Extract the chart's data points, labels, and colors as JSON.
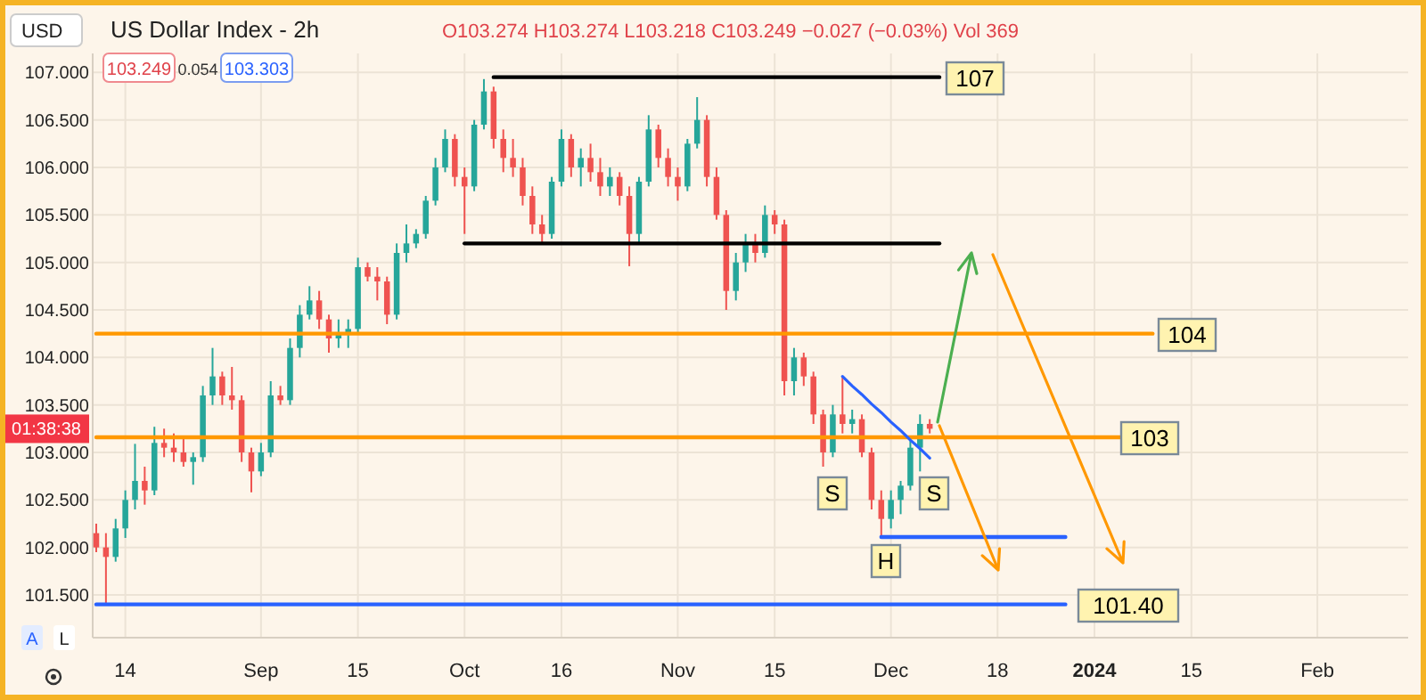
{
  "chart_data": {
    "type": "candlestick",
    "title": "US Dollar Index - 2h",
    "annotations": [
      "USD",
      "O103.274 H103.274 L103.218 C103.249 −0.027 (−0.03%) Vol 369",
      "103.249",
      "0.054",
      "103.303",
      "01:38:38",
      "A",
      "L",
      "107",
      "104",
      "103",
      "101.40",
      "S",
      "H",
      "S"
    ],
    "categories": [
      null,
      null,
      null,
      "14",
      null,
      null,
      null,
      null,
      null,
      null,
      null,
      null,
      null,
      null,
      null,
      null,
      null,
      "Sep",
      null,
      null,
      null,
      null,
      null,
      null,
      null,
      null,
      null,
      "15",
      null,
      null,
      null,
      null,
      null,
      null,
      null,
      null,
      null,
      null,
      "Oct",
      null,
      null,
      null,
      null,
      null,
      null,
      null,
      null,
      null,
      "16",
      null,
      null,
      null,
      null,
      null,
      null,
      null,
      null,
      null,
      null,
      null,
      "Nov",
      null,
      null,
      null,
      null,
      null,
      null,
      null,
      null,
      null,
      "15",
      null,
      null,
      null,
      null,
      null,
      null,
      null,
      null,
      null,
      null,
      null,
      "Dec",
      null,
      null,
      null,
      null,
      null,
      null,
      null,
      null,
      null,
      null,
      "18",
      null,
      null,
      null,
      null,
      null,
      null,
      null,
      null,
      null,
      "2024",
      null,
      null,
      null,
      null,
      null,
      null,
      null,
      null,
      null,
      "15",
      null,
      null,
      null,
      null,
      null,
      null,
      null,
      null,
      null,
      null,
      null,
      null,
      "Feb",
      null,
      null,
      null,
      null,
      null,
      null,
      null,
      null,
      null
    ],
    "ohlc": [
      [
        102.15,
        102.25,
        101.95,
        102.0
      ],
      [
        102.0,
        102.15,
        101.41,
        101.9
      ],
      [
        101.9,
        102.3,
        101.85,
        102.2
      ],
      [
        102.2,
        102.6,
        102.1,
        102.5
      ],
      [
        102.5,
        103.09,
        102.4,
        102.7
      ],
      [
        102.7,
        102.85,
        102.45,
        102.6
      ],
      [
        102.6,
        103.27,
        102.55,
        103.1
      ],
      [
        103.1,
        103.25,
        102.95,
        103.05
      ],
      [
        103.05,
        103.2,
        102.9,
        103.0
      ],
      [
        103.0,
        103.15,
        102.85,
        102.9
      ],
      [
        102.9,
        103.0,
        102.66,
        102.95
      ],
      [
        102.95,
        103.7,
        102.9,
        103.6
      ],
      [
        103.6,
        104.1,
        103.5,
        103.8
      ],
      [
        103.8,
        103.85,
        103.5,
        103.6
      ],
      [
        103.6,
        103.9,
        103.45,
        103.55
      ],
      [
        103.55,
        103.6,
        102.9,
        103.0
      ],
      [
        103.0,
        103.05,
        102.58,
        102.8
      ],
      [
        102.8,
        103.1,
        102.75,
        103.0
      ],
      [
        103.0,
        103.75,
        102.95,
        103.6
      ],
      [
        103.6,
        103.7,
        103.5,
        103.55
      ],
      [
        103.55,
        104.2,
        103.5,
        104.1
      ],
      [
        104.1,
        104.55,
        104.0,
        104.45
      ],
      [
        104.45,
        104.75,
        104.4,
        104.6
      ],
      [
        104.6,
        104.7,
        104.3,
        104.4
      ],
      [
        104.4,
        104.45,
        104.05,
        104.2
      ],
      [
        104.2,
        104.4,
        104.1,
        104.25
      ],
      [
        104.25,
        104.4,
        104.1,
        104.3
      ],
      [
        104.3,
        105.05,
        104.25,
        104.95
      ],
      [
        104.95,
        105.0,
        104.8,
        104.85
      ],
      [
        104.85,
        104.95,
        104.6,
        104.8
      ],
      [
        104.8,
        104.85,
        104.35,
        104.45
      ],
      [
        104.45,
        105.2,
        104.4,
        105.1
      ],
      [
        105.1,
        105.4,
        105.0,
        105.2
      ],
      [
        105.2,
        105.35,
        105.15,
        105.3
      ],
      [
        105.3,
        105.7,
        105.25,
        105.65
      ],
      [
        105.65,
        106.1,
        105.6,
        106.0
      ],
      [
        106.0,
        106.4,
        105.95,
        106.3
      ],
      [
        106.3,
        106.35,
        105.8,
        105.9
      ],
      [
        105.9,
        106.0,
        105.3,
        105.8
      ],
      [
        105.8,
        106.5,
        105.75,
        106.45
      ],
      [
        106.45,
        106.93,
        106.4,
        106.8
      ],
      [
        106.8,
        106.85,
        106.2,
        106.3
      ],
      [
        106.3,
        106.4,
        105.95,
        106.1
      ],
      [
        106.1,
        106.3,
        105.9,
        106.0
      ],
      [
        106.0,
        106.1,
        105.6,
        105.7
      ],
      [
        105.7,
        105.8,
        105.3,
        105.4
      ],
      [
        105.4,
        105.5,
        105.2,
        105.3
      ],
      [
        105.3,
        105.9,
        105.25,
        105.85
      ],
      [
        105.85,
        106.4,
        105.8,
        106.3
      ],
      [
        106.3,
        106.35,
        105.9,
        106.0
      ],
      [
        106.0,
        106.2,
        105.8,
        106.1
      ],
      [
        106.1,
        106.25,
        105.85,
        105.95
      ],
      [
        105.95,
        106.1,
        105.7,
        105.8
      ],
      [
        105.8,
        106.0,
        105.7,
        105.9
      ],
      [
        105.9,
        105.95,
        105.6,
        105.7
      ],
      [
        105.7,
        105.8,
        104.96,
        105.3
      ],
      [
        105.3,
        105.9,
        105.2,
        105.85
      ],
      [
        105.85,
        106.55,
        105.8,
        106.4
      ],
      [
        106.4,
        106.45,
        106.0,
        106.1
      ],
      [
        106.1,
        106.2,
        105.8,
        105.9
      ],
      [
        105.9,
        106.0,
        105.65,
        105.8
      ],
      [
        105.8,
        106.3,
        105.75,
        106.25
      ],
      [
        106.25,
        106.74,
        106.2,
        106.5
      ],
      [
        106.5,
        106.55,
        105.8,
        105.9
      ],
      [
        105.9,
        106.0,
        105.45,
        105.5
      ],
      [
        105.5,
        105.55,
        104.5,
        104.7
      ],
      [
        104.7,
        105.1,
        104.6,
        105.0
      ],
      [
        105.0,
        105.3,
        104.9,
        105.2
      ],
      [
        105.2,
        105.3,
        105.0,
        105.1
      ],
      [
        105.1,
        105.6,
        105.05,
        105.5
      ],
      [
        105.5,
        105.55,
        105.3,
        105.4
      ],
      [
        105.4,
        105.45,
        103.6,
        103.75
      ],
      [
        103.75,
        104.1,
        103.6,
        104.0
      ],
      [
        104.0,
        104.05,
        103.7,
        103.8
      ],
      [
        103.8,
        103.85,
        103.3,
        103.4
      ],
      [
        103.4,
        103.45,
        102.85,
        103.0
      ],
      [
        103.0,
        103.5,
        102.95,
        103.4
      ],
      [
        103.4,
        103.8,
        103.2,
        103.3
      ],
      [
        103.3,
        103.45,
        103.2,
        103.35
      ],
      [
        103.35,
        103.4,
        102.95,
        103.0
      ],
      [
        103.0,
        103.05,
        102.4,
        102.5
      ],
      [
        102.5,
        102.6,
        102.1,
        102.3
      ],
      [
        102.3,
        102.6,
        102.2,
        102.5
      ],
      [
        102.5,
        102.7,
        102.35,
        102.65
      ],
      [
        102.65,
        103.15,
        102.6,
        103.05
      ],
      [
        103.05,
        103.4,
        102.8,
        103.3
      ],
      [
        103.3,
        103.35,
        103.2,
        103.249
      ],
      null,
      null,
      null,
      null,
      null,
      null,
      null,
      null,
      null,
      null,
      null,
      null,
      null,
      null,
      null,
      null,
      null,
      null,
      null,
      null,
      null,
      null,
      null,
      null,
      null,
      null,
      null,
      null,
      null,
      null,
      null,
      null,
      null,
      null,
      null,
      null,
      null,
      null,
      null,
      null,
      null,
      null,
      null,
      null,
      null,
      null,
      null,
      null,
      null
    ],
    "series": [
      {
        "type": "line",
        "color": "#000000",
        "values": [
          null,
          null,
          null,
          null,
          null,
          null,
          null,
          null,
          null,
          null,
          null,
          null,
          null,
          null,
          null,
          null,
          null,
          null,
          null,
          null,
          null,
          null,
          null,
          null,
          null,
          null,
          null,
          null,
          null,
          null,
          null,
          null,
          null,
          null,
          null,
          null,
          null,
          null,
          null,
          null,
          null,
          106.95,
          106.95,
          106.95,
          106.95,
          106.95,
          106.95,
          106.95,
          106.95,
          106.95,
          106.95,
          106.95,
          106.95,
          106.95,
          106.95,
          106.95,
          106.95,
          106.95,
          106.95,
          106.95,
          106.95,
          106.95,
          106.95,
          106.95,
          106.95,
          106.95,
          106.95,
          106.95,
          106.95,
          106.95,
          106.95,
          106.95,
          106.95,
          106.95,
          106.95,
          106.95,
          106.95,
          106.95,
          106.95,
          106.95,
          106.95,
          106.95,
          106.95,
          106.95,
          106.95,
          106.95,
          106.95,
          106.95,
          null,
          null,
          null,
          null,
          null,
          null,
          null,
          null,
          null,
          null,
          null,
          null,
          null,
          null,
          null,
          null,
          null,
          null,
          null,
          null,
          null,
          null,
          null,
          null,
          null,
          null,
          null,
          null,
          null,
          null,
          null,
          null,
          null,
          null,
          null,
          null,
          null,
          null,
          null,
          null,
          null,
          null,
          null,
          null,
          null,
          null,
          null,
          null
        ]
      },
      {
        "type": "line",
        "color": "#000000",
        "values": [
          null,
          null,
          null,
          null,
          null,
          null,
          null,
          null,
          null,
          null,
          null,
          null,
          null,
          null,
          null,
          null,
          null,
          null,
          null,
          null,
          null,
          null,
          null,
          null,
          null,
          null,
          null,
          null,
          null,
          null,
          null,
          null,
          null,
          null,
          null,
          null,
          null,
          null,
          105.2,
          105.2,
          105.2,
          105.2,
          105.2,
          105.2,
          105.2,
          105.2,
          105.2,
          105.2,
          105.2,
          105.2,
          105.2,
          105.2,
          105.2,
          105.2,
          105.2,
          105.2,
          105.2,
          105.2,
          105.2,
          105.2,
          105.2,
          105.2,
          105.2,
          105.2,
          105.2,
          105.2,
          105.2,
          105.2,
          105.2,
          105.2,
          105.2,
          105.2,
          105.2,
          105.2,
          105.2,
          105.2,
          105.2,
          105.2,
          105.2,
          105.2,
          105.2,
          105.2,
          105.2,
          105.2,
          105.2,
          105.2,
          105.2,
          105.2,
          null,
          null,
          null,
          null,
          null,
          null,
          null,
          null,
          null,
          null,
          null,
          null,
          null,
          null,
          null,
          null,
          null,
          null,
          null,
          null,
          null,
          null,
          null,
          null,
          null,
          null,
          null,
          null,
          null,
          null,
          null,
          null,
          null,
          null,
          null,
          null,
          null,
          null,
          null,
          null,
          null,
          null,
          null,
          null,
          null,
          null,
          null,
          null
        ]
      },
      {
        "type": "line",
        "color": "#ff9800",
        "values": [
          104.25,
          104.25,
          104.25,
          104.25,
          104.25,
          104.25,
          104.25,
          104.25,
          104.25,
          104.25,
          104.25,
          104.25,
          104.25,
          104.25,
          104.25,
          104.25,
          104.25,
          104.25,
          104.25,
          104.25,
          104.25,
          104.25,
          104.25,
          104.25,
          104.25,
          104.25,
          104.25,
          104.25,
          104.25,
          104.25,
          104.25,
          104.25,
          104.25,
          104.25,
          104.25,
          104.25,
          104.25,
          104.25,
          104.25,
          104.25,
          104.25,
          104.25,
          104.25,
          104.25,
          104.25,
          104.25,
          104.25,
          104.25,
          104.25,
          104.25,
          104.25,
          104.25,
          104.25,
          104.25,
          104.25,
          104.25,
          104.25,
          104.25,
          104.25,
          104.25,
          104.25,
          104.25,
          104.25,
          104.25,
          104.25,
          104.25,
          104.25,
          104.25,
          104.25,
          104.25,
          104.25,
          104.25,
          104.25,
          104.25,
          104.25,
          104.25,
          104.25,
          104.25,
          104.25,
          104.25,
          104.25,
          104.25,
          104.25,
          104.25,
          104.25,
          104.25,
          104.25,
          104.25,
          104.25,
          104.25,
          104.25,
          104.25,
          104.25,
          104.25,
          104.25,
          104.25,
          104.25,
          104.25,
          104.25,
          104.25,
          104.25,
          104.25,
          104.25,
          104.25,
          104.25,
          104.25,
          104.25,
          104.25,
          104.25,
          104.25,
          null,
          null,
          null,
          null,
          null,
          null,
          null,
          null,
          null,
          null,
          null,
          null,
          null,
          null,
          null,
          null,
          null,
          null,
          null,
          null,
          null,
          null,
          null,
          null,
          null,
          null
        ]
      },
      {
        "type": "line",
        "color": "#ff9800",
        "values": [
          103.16,
          103.16,
          103.16,
          103.16,
          103.16,
          103.16,
          103.16,
          103.16,
          103.16,
          103.16,
          103.16,
          103.16,
          103.16,
          103.16,
          103.16,
          103.16,
          103.16,
          103.16,
          103.16,
          103.16,
          103.16,
          103.16,
          103.16,
          103.16,
          103.16,
          103.16,
          103.16,
          103.16,
          103.16,
          103.16,
          103.16,
          103.16,
          103.16,
          103.16,
          103.16,
          103.16,
          103.16,
          103.16,
          103.16,
          103.16,
          103.16,
          103.16,
          103.16,
          103.16,
          103.16,
          103.16,
          103.16,
          103.16,
          103.16,
          103.16,
          103.16,
          103.16,
          103.16,
          103.16,
          103.16,
          103.16,
          103.16,
          103.16,
          103.16,
          103.16,
          103.16,
          103.16,
          103.16,
          103.16,
          103.16,
          103.16,
          103.16,
          103.16,
          103.16,
          103.16,
          103.16,
          103.16,
          103.16,
          103.16,
          103.16,
          103.16,
          103.16,
          103.16,
          103.16,
          103.16,
          103.16,
          103.16,
          103.16,
          103.16,
          103.16,
          103.16,
          103.16,
          103.16,
          103.16,
          103.16,
          103.16,
          103.16,
          103.16,
          103.16,
          103.16,
          103.16,
          103.16,
          103.16,
          103.16,
          103.16,
          103.16,
          103.16,
          103.16,
          103.16,
          103.16,
          103.16,
          103.16,
          null,
          null,
          null,
          null,
          null,
          null,
          null,
          null,
          null,
          null,
          null,
          null,
          null,
          null,
          null,
          null,
          null,
          null,
          null,
          null,
          null,
          null,
          null,
          null,
          null,
          null,
          null,
          null,
          null
        ]
      },
      {
        "type": "line",
        "color": "#2962ff",
        "values": [
          101.4,
          101.4,
          101.4,
          101.4,
          101.4,
          101.4,
          101.4,
          101.4,
          101.4,
          101.4,
          101.4,
          101.4,
          101.4,
          101.4,
          101.4,
          101.4,
          101.4,
          101.4,
          101.4,
          101.4,
          101.4,
          101.4,
          101.4,
          101.4,
          101.4,
          101.4,
          101.4,
          101.4,
          101.4,
          101.4,
          101.4,
          101.4,
          101.4,
          101.4,
          101.4,
          101.4,
          101.4,
          101.4,
          101.4,
          101.4,
          101.4,
          101.4,
          101.4,
          101.4,
          101.4,
          101.4,
          101.4,
          101.4,
          101.4,
          101.4,
          101.4,
          101.4,
          101.4,
          101.4,
          101.4,
          101.4,
          101.4,
          101.4,
          101.4,
          101.4,
          101.4,
          101.4,
          101.4,
          101.4,
          101.4,
          101.4,
          101.4,
          101.4,
          101.4,
          101.4,
          101.4,
          101.4,
          101.4,
          101.4,
          101.4,
          101.4,
          101.4,
          101.4,
          101.4,
          101.4,
          101.4,
          101.4,
          101.4,
          101.4,
          101.4,
          101.4,
          101.4,
          101.4,
          101.4,
          101.4,
          101.4,
          101.4,
          101.4,
          101.4,
          101.4,
          101.4,
          101.4,
          101.4,
          101.4,
          101.4,
          101.4,
          null,
          null,
          null,
          null,
          null,
          null,
          null,
          null,
          null,
          null,
          null,
          null,
          null,
          null,
          null,
          null,
          null,
          null,
          null,
          null,
          null,
          null,
          null,
          null,
          null,
          null,
          null,
          null,
          null,
          null,
          null,
          null,
          null,
          null,
          null
        ]
      },
      {
        "type": "line",
        "color": "#2962ff",
        "values": [
          null,
          null,
          null,
          null,
          null,
          null,
          null,
          null,
          null,
          null,
          null,
          null,
          null,
          null,
          null,
          null,
          null,
          null,
          null,
          null,
          null,
          null,
          null,
          null,
          null,
          null,
          null,
          null,
          null,
          null,
          null,
          null,
          null,
          null,
          null,
          null,
          null,
          null,
          null,
          null,
          null,
          null,
          null,
          null,
          null,
          null,
          null,
          null,
          null,
          null,
          null,
          null,
          null,
          null,
          null,
          null,
          null,
          null,
          null,
          null,
          null,
          null,
          null,
          null,
          null,
          null,
          null,
          null,
          null,
          null,
          null,
          null,
          null,
          null,
          null,
          null,
          null,
          null,
          null,
          null,
          null,
          102.11,
          102.11,
          102.11,
          102.11,
          102.11,
          102.11,
          102.11,
          102.11,
          102.11,
          102.11,
          102.11,
          102.11,
          102.11,
          102.11,
          102.11,
          102.11,
          102.11,
          102.11,
          102.11,
          102.11,
          null,
          null,
          null,
          null,
          null,
          null,
          null,
          null,
          null,
          null,
          null,
          null,
          null,
          null,
          null,
          null,
          null,
          null,
          null,
          null,
          null,
          null,
          null,
          null,
          null,
          null,
          null,
          null,
          null,
          null,
          null,
          null,
          null,
          null,
          null
        ]
      },
      {
        "type": "line",
        "color": "#2962ff",
        "values": [
          null,
          null,
          null,
          null,
          null,
          null,
          null,
          null,
          null,
          null,
          null,
          null,
          null,
          null,
          null,
          null,
          null,
          null,
          null,
          null,
          null,
          null,
          null,
          null,
          null,
          null,
          null,
          null,
          null,
          null,
          null,
          null,
          null,
          null,
          null,
          null,
          null,
          null,
          null,
          null,
          null,
          null,
          null,
          null,
          null,
          null,
          null,
          null,
          null,
          null,
          null,
          null,
          null,
          null,
          null,
          null,
          null,
          null,
          null,
          null,
          null,
          null,
          null,
          null,
          null,
          null,
          null,
          null,
          null,
          null,
          null,
          null,
          null,
          null,
          null,
          null,
          null,
          103.8,
          103.7,
          103.61,
          103.51,
          103.42,
          103.32,
          103.23,
          103.13,
          103.04,
          102.94,
          null,
          null,
          null,
          null,
          null,
          null,
          null,
          null,
          null,
          null,
          null,
          null,
          null,
          null,
          null,
          null,
          null,
          null,
          null,
          null,
          null,
          null,
          null,
          null,
          null,
          null,
          null,
          null,
          null,
          null,
          null,
          null,
          null,
          null,
          null,
          null,
          null,
          null,
          null,
          null,
          null,
          null,
          null,
          null,
          null,
          null,
          null,
          null,
          null
        ]
      }
    ],
    "ylim": [
      101.05,
      107.2
    ],
    "yticks": [
      {
        "value": 101.5,
        "label": "101.500"
      },
      {
        "value": 102,
        "label": "102.000"
      },
      {
        "value": 102.5,
        "label": "102.500"
      },
      {
        "value": 103,
        "label": "103.000"
      },
      {
        "value": 103.5,
        "label": "103.500"
      },
      {
        "value": 104,
        "label": "104.000"
      },
      {
        "value": 104.5,
        "label": "104.500"
      },
      {
        "value": 105,
        "label": "105.000"
      },
      {
        "value": 105.5,
        "label": "105.500"
      },
      {
        "value": 106,
        "label": "106.000"
      },
      {
        "value": 106.5,
        "label": "106.500"
      },
      {
        "value": 107,
        "label": "107.000"
      }
    ],
    "grid": true
  }
}
